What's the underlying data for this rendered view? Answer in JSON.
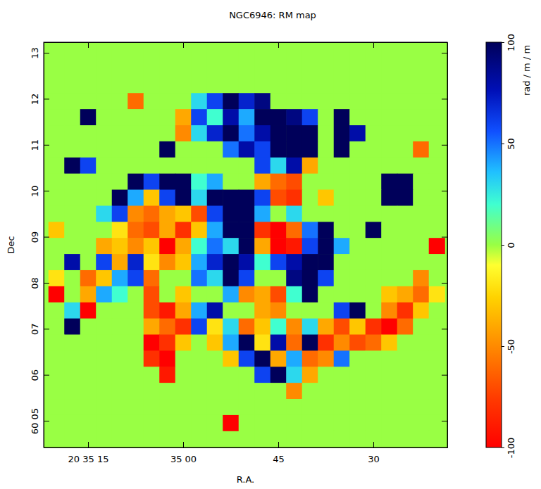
{
  "chart_data": {
    "type": "heatmap",
    "title": "NGC6946: RM map",
    "x_label": "R.A.",
    "y_label": "Dec",
    "xlim": [
      82,
      18.33
    ],
    "ylim": [
      4.42,
      13.23
    ],
    "xticks": [
      {
        "value": 75,
        "label": "20 35 15"
      },
      {
        "value": 60,
        "label": "35 00"
      },
      45,
      30
    ],
    "yticks": [
      {
        "value": 5,
        "label": "60 05"
      },
      {
        "value": 6,
        "label": "06"
      },
      {
        "value": 7,
        "label": "07"
      },
      {
        "value": 8,
        "label": "08"
      },
      {
        "value": 9,
        "label": "09"
      },
      10,
      11,
      12,
      13
    ],
    "colorbar_label": "rad / m / m",
    "zlim": [
      -100,
      100
    ],
    "zticks": [
      -100,
      -50,
      0,
      50,
      100
    ],
    "x": [
      80,
      77.5,
      75,
      72.5,
      70,
      67.5,
      65,
      62.5,
      60,
      57.5,
      55,
      52.5,
      50,
      47.5,
      45,
      42.5,
      40,
      37.5,
      35,
      32.5,
      30,
      27.5,
      25,
      22.5,
      20
    ],
    "y": [
      13.0,
      12.65,
      12.3,
      11.95,
      11.6,
      11.25,
      10.9,
      10.55,
      10.2,
      9.85,
      9.5,
      9.15,
      8.8,
      8.45,
      8.1,
      7.75,
      7.4,
      7.05,
      6.7,
      6.35,
      6.0,
      5.65,
      5.3,
      4.95,
      4.6
    ],
    "z": [
      [
        0,
        0,
        0,
        0,
        0,
        0,
        0,
        0,
        0,
        0,
        0,
        0,
        0,
        0,
        0,
        0,
        0,
        0,
        0,
        0,
        0,
        0,
        0,
        0,
        0
      ],
      [
        0,
        0,
        0,
        0,
        0,
        0,
        0,
        0,
        0,
        0,
        0,
        0,
        0,
        0,
        0,
        0,
        0,
        0,
        0,
        0,
        0,
        0,
        0,
        0,
        0
      ],
      [
        0,
        0,
        0,
        0,
        0,
        0,
        0,
        0,
        0,
        0,
        0,
        0,
        0,
        0,
        0,
        0,
        0,
        0,
        0,
        0,
        0,
        0,
        0,
        0,
        0
      ],
      [
        0,
        0,
        0,
        0,
        0,
        -60,
        0,
        0,
        0,
        30,
        60,
        100,
        70,
        90,
        0,
        0,
        0,
        0,
        0,
        0,
        0,
        0,
        0,
        0,
        0
      ],
      [
        0,
        0,
        100,
        0,
        0,
        0,
        0,
        0,
        -40,
        60,
        20,
        80,
        40,
        100,
        100,
        90,
        60,
        0,
        100,
        0,
        0,
        0,
        0,
        0,
        0
      ],
      [
        0,
        0,
        0,
        0,
        0,
        0,
        0,
        0,
        -50,
        30,
        70,
        100,
        50,
        80,
        100,
        100,
        100,
        0,
        100,
        80,
        0,
        0,
        0,
        0,
        0
      ],
      [
        0,
        0,
        0,
        0,
        0,
        0,
        0,
        100,
        0,
        0,
        0,
        50,
        80,
        60,
        100,
        100,
        100,
        0,
        100,
        0,
        0,
        0,
        0,
        -60,
        0
      ],
      [
        0,
        100,
        60,
        0,
        0,
        0,
        0,
        0,
        0,
        0,
        0,
        0,
        0,
        60,
        30,
        80,
        -40,
        0,
        0,
        0,
        0,
        0,
        0,
        0,
        0
      ],
      [
        0,
        0,
        0,
        0,
        0,
        100,
        60,
        100,
        100,
        20,
        40,
        0,
        0,
        -40,
        -60,
        -70,
        0,
        0,
        0,
        0,
        0,
        100,
        100,
        0,
        0
      ],
      [
        0,
        0,
        0,
        0,
        100,
        40,
        -30,
        60,
        100,
        30,
        100,
        100,
        100,
        60,
        -70,
        -80,
        0,
        -30,
        0,
        0,
        0,
        100,
        100,
        0,
        0
      ],
      [
        0,
        0,
        0,
        30,
        60,
        -50,
        -60,
        -40,
        -30,
        -70,
        60,
        100,
        100,
        40,
        0,
        30,
        0,
        0,
        0,
        0,
        0,
        0,
        0,
        0,
        0
      ],
      [
        -30,
        0,
        0,
        0,
        -20,
        -60,
        -70,
        -40,
        -80,
        -30,
        40,
        100,
        100,
        -80,
        -100,
        -60,
        50,
        100,
        0,
        0,
        100,
        0,
        0,
        0,
        0
      ],
      [
        0,
        0,
        0,
        -40,
        -30,
        -50,
        -30,
        -100,
        -40,
        20,
        50,
        30,
        100,
        -40,
        -100,
        -90,
        60,
        100,
        40,
        0,
        0,
        0,
        0,
        0,
        -100
      ],
      [
        0,
        80,
        0,
        60,
        -40,
        70,
        -20,
        -50,
        -30,
        40,
        70,
        100,
        80,
        20,
        60,
        80,
        100,
        100,
        0,
        0,
        0,
        0,
        0,
        0,
        0
      ],
      [
        -20,
        0,
        -60,
        -30,
        40,
        60,
        -60,
        0,
        0,
        50,
        30,
        100,
        60,
        0,
        0,
        90,
        100,
        60,
        0,
        0,
        0,
        0,
        0,
        -50,
        0
      ],
      [
        -100,
        0,
        -40,
        40,
        20,
        0,
        -70,
        0,
        -30,
        0,
        0,
        40,
        -50,
        -40,
        -70,
        20,
        100,
        0,
        0,
        0,
        0,
        -30,
        -40,
        -60,
        -20
      ],
      [
        0,
        30,
        -100,
        0,
        0,
        0,
        -70,
        -90,
        -40,
        40,
        80,
        0,
        0,
        -40,
        -50,
        0,
        0,
        0,
        60,
        100,
        0,
        -50,
        -80,
        -30,
        0
      ],
      [
        0,
        100,
        0,
        0,
        0,
        0,
        -40,
        -60,
        -80,
        60,
        -20,
        30,
        -60,
        -30,
        20,
        -50,
        30,
        -40,
        -70,
        -30,
        -80,
        -100,
        -60,
        0,
        0
      ],
      [
        0,
        0,
        0,
        0,
        0,
        0,
        -100,
        -80,
        -30,
        0,
        -30,
        40,
        100,
        -20,
        80,
        -60,
        100,
        -80,
        -50,
        -70,
        -60,
        -30,
        0,
        0,
        0
      ],
      [
        0,
        0,
        0,
        0,
        0,
        0,
        -80,
        -100,
        0,
        0,
        0,
        -30,
        60,
        100,
        -40,
        40,
        -60,
        -50,
        50,
        0,
        0,
        0,
        0,
        0,
        0
      ],
      [
        0,
        0,
        0,
        0,
        0,
        0,
        0,
        -90,
        0,
        0,
        0,
        0,
        0,
        60,
        100,
        30,
        -40,
        0,
        0,
        0,
        0,
        0,
        0,
        0,
        0
      ],
      [
        0,
        0,
        0,
        0,
        0,
        0,
        0,
        0,
        0,
        0,
        0,
        0,
        0,
        0,
        0,
        -50,
        0,
        0,
        0,
        0,
        0,
        0,
        0,
        0,
        0
      ],
      [
        0,
        0,
        0,
        0,
        0,
        0,
        0,
        0,
        0,
        0,
        0,
        0,
        0,
        0,
        0,
        0,
        0,
        0,
        0,
        0,
        0,
        0,
        0,
        0,
        0
      ],
      [
        0,
        0,
        0,
        0,
        0,
        0,
        0,
        0,
        0,
        0,
        0,
        -100,
        0,
        0,
        0,
        0,
        0,
        0,
        0,
        0,
        0,
        0,
        0,
        0,
        0
      ],
      [
        0,
        0,
        0,
        0,
        0,
        0,
        0,
        0,
        0,
        0,
        0,
        0,
        0,
        0,
        0,
        0,
        0,
        0,
        0,
        0,
        0,
        0,
        0,
        0,
        0
      ]
    ]
  }
}
